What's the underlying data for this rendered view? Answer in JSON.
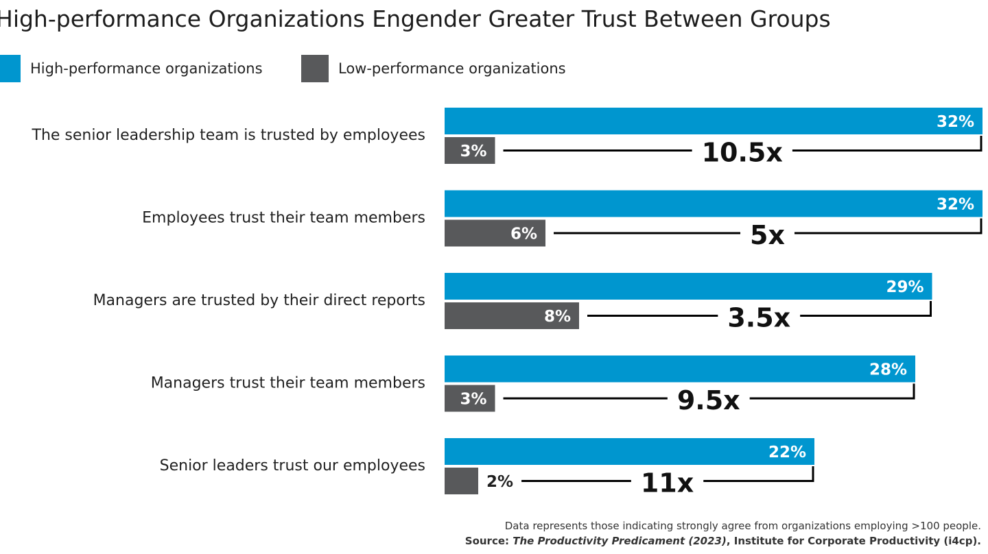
{
  "chart_data": {
    "type": "bar",
    "orientation": "horizontal",
    "title": "High-performance Organizations Engender Greater Trust Between Groups",
    "legend_position": "top-left",
    "categories": [
      "The senior leadership team is trusted by employees",
      "Employees trust their team members",
      "Managers are trusted by their direct reports",
      "Managers trust their team members",
      "Senior leaders trust our employees"
    ],
    "series": [
      {
        "name": "High-performance organizations",
        "color": "#0096cf",
        "values": [
          32,
          32,
          29,
          28,
          22
        ],
        "labels": [
          "32%",
          "32%",
          "29%",
          "28%",
          "22%"
        ]
      },
      {
        "name": "Low-performance organizations",
        "color": "#58595b",
        "values": [
          3,
          6,
          8,
          3,
          2
        ],
        "labels": [
          "3%",
          "6%",
          "8%",
          "3%",
          "2%"
        ]
      }
    ],
    "ratios": [
      "10.5x",
      "5x",
      "3.5x",
      "9.5x",
      "11x"
    ],
    "xlim": [
      0,
      32
    ],
    "grid": false
  },
  "footer": {
    "note": "Data represents those indicating strongly agree from organizations employing >100 people.",
    "source_prefix": "Source: ",
    "source_title": "The Productivity Predicament (2023)",
    "source_suffix": ", Institute for Corporate Productivity (i4cp)."
  }
}
